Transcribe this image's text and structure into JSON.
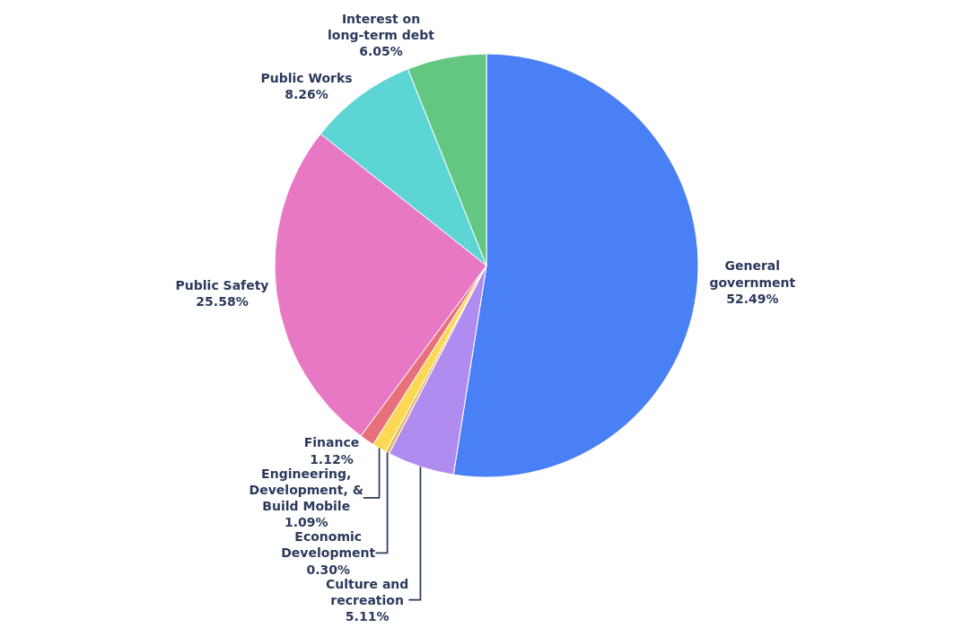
{
  "chart_data": {
    "type": "pie",
    "categories": [
      "General government",
      "Culture and recreation",
      "Economic Development",
      "Engineering, Development, & Build Mobile",
      "Finance",
      "Public Safety",
      "Public Works",
      "Interest on long-term debt"
    ],
    "values": [
      52.49,
      5.11,
      0.3,
      1.09,
      1.12,
      25.58,
      8.26,
      6.05
    ],
    "value_labels": [
      "52.49%",
      "5.11%",
      "0.30%",
      "1.09%",
      "1.12%",
      "25.58%",
      "8.26%",
      "6.05%"
    ],
    "colors": [
      "#4a80f5",
      "#b18cf0",
      "#e8b96a",
      "#fcd955",
      "#e8707a",
      "#e878c4",
      "#5dd5d5",
      "#63c782"
    ],
    "legend": false
  }
}
